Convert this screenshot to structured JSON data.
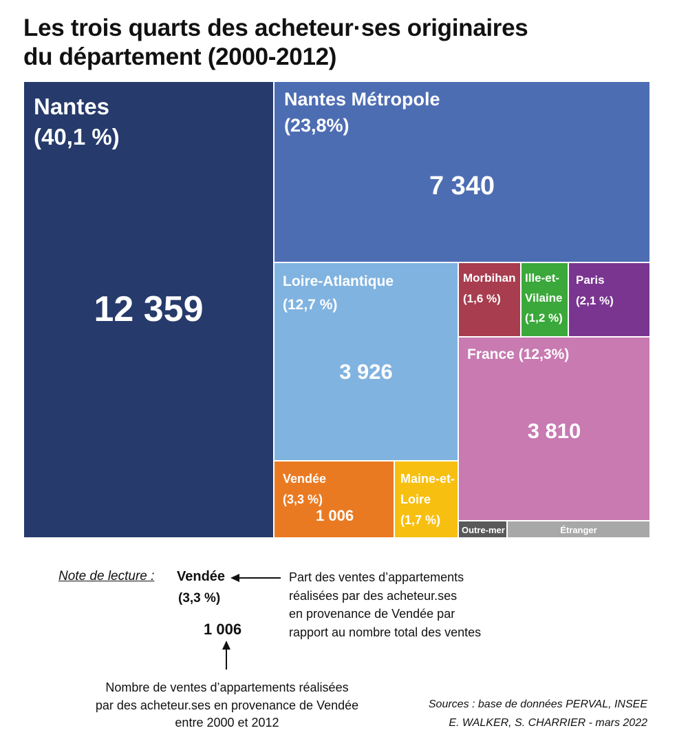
{
  "title": {
    "line1": "Les trois quarts des acheteur·ses originaires",
    "line2": "du département (2000-2012)"
  },
  "chart_data": {
    "type": "treemap",
    "cells": [
      {
        "name": "Nantes",
        "pct": "(40,1 %)",
        "value": 12359,
        "value_label": "12 359",
        "color": "#263a6b"
      },
      {
        "name": "Nantes Métropole",
        "pct": "(23,8%)",
        "value": 7340,
        "value_label": "7 340",
        "color": "#4d6db3"
      },
      {
        "name": "Loire-Atlantique",
        "pct": "(12,7 %)",
        "value": 3926,
        "value_label": "3 926",
        "color": "#80b3e0"
      },
      {
        "name": "Morbihan",
        "pct": "(1,6 %)",
        "color": "#a73d4f"
      },
      {
        "name": "Ille-et-Vilaine",
        "pct": "(1,2 %)",
        "color": "#3aa83a"
      },
      {
        "name": "Paris",
        "pct": "(2,1 %)",
        "color": "#7a3590"
      },
      {
        "name": "France",
        "pct": "(12,3%)",
        "value": 3810,
        "value_label": "3 810",
        "color": "#c87ab1"
      },
      {
        "name": "Vendée",
        "pct": "(3,3 %)",
        "value": 1006,
        "value_label": "1 006",
        "color": "#ea7a22"
      },
      {
        "name": "Maine-et-Loire",
        "pct": "(1,7 %)",
        "color": "#f7bf10"
      },
      {
        "name": "Outre-mer",
        "color": "#595959"
      },
      {
        "name": "Étranger",
        "color": "#a8a8a8"
      }
    ]
  },
  "note": {
    "heading": "Note de lecture :",
    "example_name": "Vendée",
    "example_pct": "(3,3 %)",
    "example_value": "1 006",
    "right_lines": [
      "Part des ventes d’appartements",
      "réalisées par des acheteur.ses",
      "en provenance de Vendée par",
      "rapport au nombre total des ventes"
    ],
    "bottom_lines": [
      "Nombre de ventes d’appartements réalisées",
      "par des acheteur.ses en provenance de Vendée",
      "entre 2000 et 2012"
    ]
  },
  "sources": {
    "line1": "Sources : base de données PERVAL, INSEE",
    "line2": "E. WALKER, S. CHARRIER - mars 2022"
  },
  "colors": {
    "arrow": "#111111"
  }
}
